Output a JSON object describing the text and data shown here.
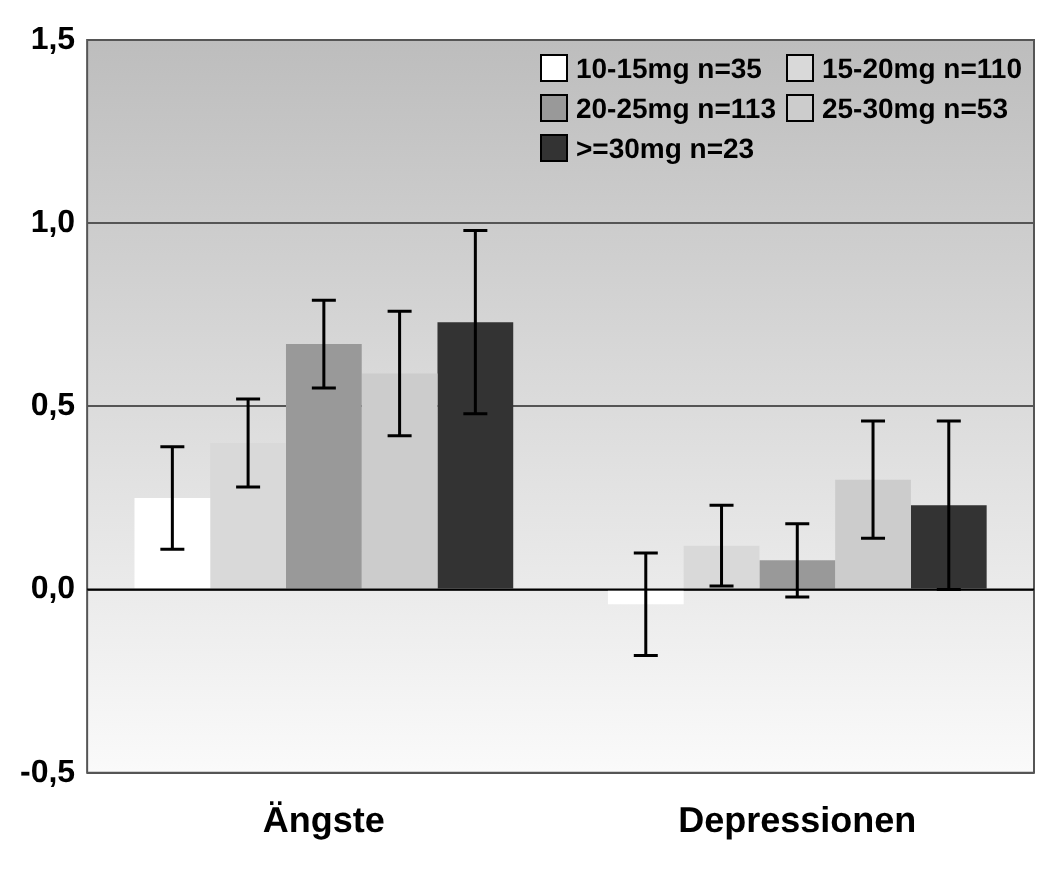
{
  "chart_data": {
    "type": "bar",
    "categories": [
      "Ängste",
      "Depressionen"
    ],
    "series": [
      {
        "name": "10-15mg n=35",
        "color": "#ffffff",
        "values": [
          0.25,
          -0.04
        ],
        "errors": [
          0.14,
          0.14
        ]
      },
      {
        "name": "15-20mg n=110",
        "color": "#d9d9d9",
        "values": [
          0.4,
          0.12
        ],
        "errors": [
          0.12,
          0.11
        ]
      },
      {
        "name": "20-25mg n=113",
        "color": "#999999",
        "values": [
          0.67,
          0.08
        ],
        "errors": [
          0.12,
          0.1
        ]
      },
      {
        "name": "25-30mg n=53",
        "color": "#cccccc",
        "values": [
          0.59,
          0.3
        ],
        "errors": [
          0.17,
          0.16
        ]
      },
      {
        "name": ">=30mg n=23",
        "color": "#333333",
        "values": [
          0.73,
          0.23
        ],
        "errors": [
          0.25,
          0.23
        ]
      }
    ],
    "ylim": [
      -0.5,
      1.5
    ],
    "yticks": [
      {
        "value": -0.5,
        "label": "-0,5"
      },
      {
        "value": 0,
        "label": "0,0"
      },
      {
        "value": 0.5,
        "label": "0,5"
      },
      {
        "value": 1,
        "label": "1,0"
      },
      {
        "value": 1.5,
        "label": "1,5"
      }
    ],
    "grid": "y",
    "legend": "top right"
  }
}
